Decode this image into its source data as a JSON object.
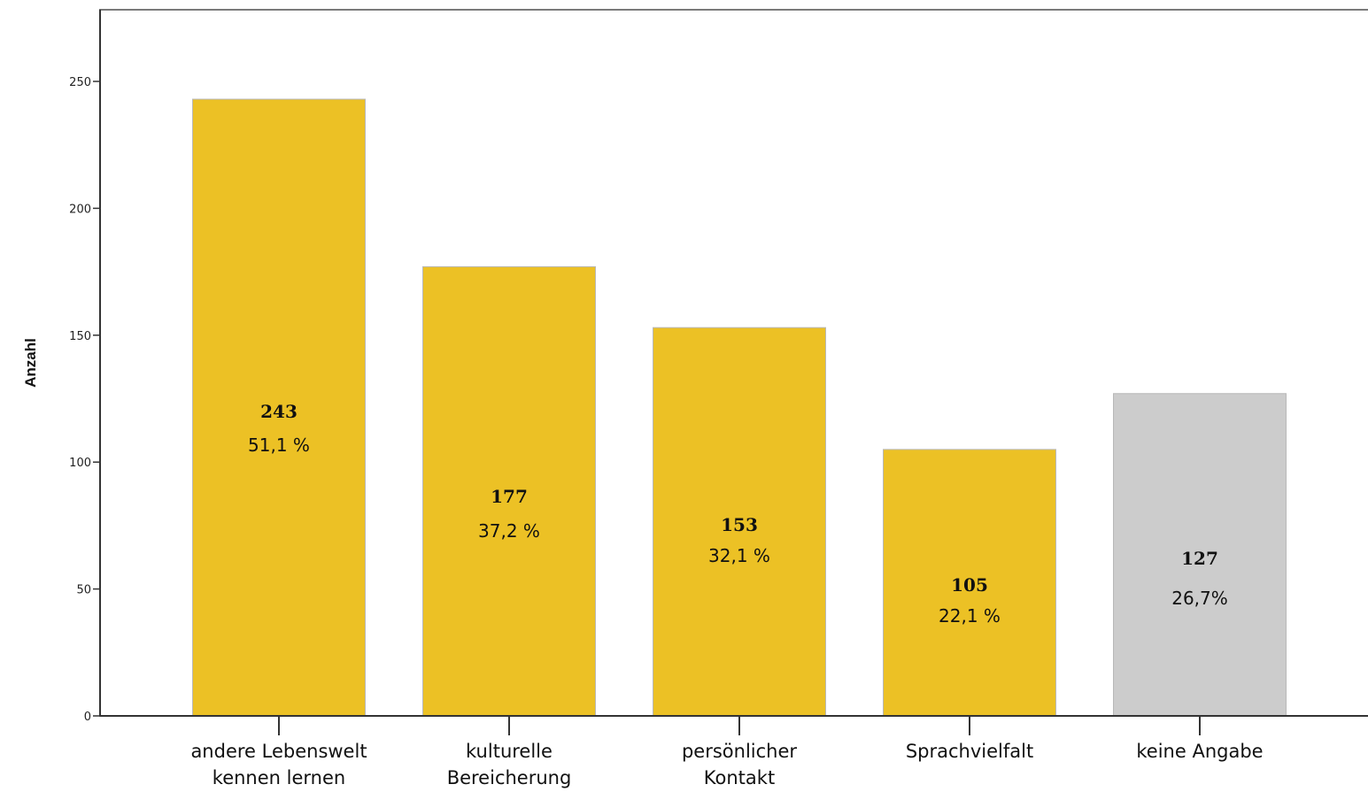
{
  "chart_data": {
    "type": "bar",
    "ylabel": "Anzahl",
    "xlabel": "",
    "ylim": [
      0,
      275
    ],
    "yticks": [
      0,
      50,
      100,
      150,
      200,
      250
    ],
    "ytick_labels": [
      "0",
      "50",
      "100",
      "150",
      "200",
      "250"
    ],
    "grid": false,
    "categories": [
      [
        "andere Lebenswelt",
        "kennen lernen"
      ],
      [
        "kulturelle",
        "Bereicherung"
      ],
      [
        "persönlicher",
        "Kontakt"
      ],
      [
        "Sprachvielfalt"
      ],
      [
        "keine Angabe"
      ]
    ],
    "values": [
      243,
      177,
      153,
      105,
      127
    ],
    "count_labels": [
      "243",
      "177",
      "153",
      "105",
      "127"
    ],
    "percent_labels": [
      "51,1 %",
      "37,2 %",
      "32,1 %",
      "22,1 %",
      "26,7%"
    ],
    "colors": [
      "#ecc125",
      "#ecc125",
      "#ecc125",
      "#ecc125",
      "#cccccc"
    ],
    "bar_edge_color": "#b8b8b8",
    "axis_color": "#333333"
  }
}
